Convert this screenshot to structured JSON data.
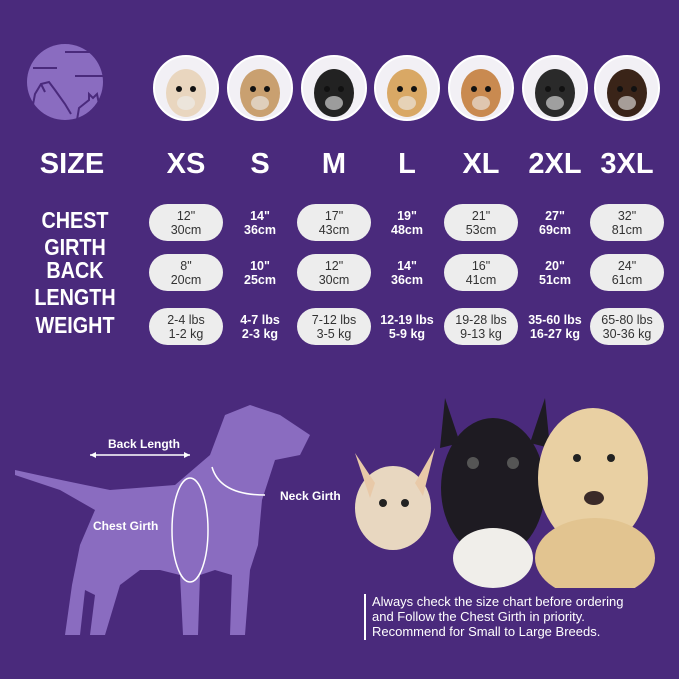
{
  "colors": {
    "background": "#4a2a7c",
    "pill": "#ededed",
    "silhouette": "#8a6cc0"
  },
  "logo": {
    "icon": "dog-cat-moon-logo-icon"
  },
  "size_label": "SIZE",
  "sizes": [
    "XS",
    "S",
    "M",
    "L",
    "XL",
    "2XL",
    "3XL"
  ],
  "rows": [
    {
      "label": "CHEST GIRTH",
      "values": [
        [
          "12\"",
          "30cm"
        ],
        [
          "14\"",
          "36cm"
        ],
        [
          "17\"",
          "43cm"
        ],
        [
          "19\"",
          "48cm"
        ],
        [
          "21\"",
          "53cm"
        ],
        [
          "27\"",
          "69cm"
        ],
        [
          "32\"",
          "81cm"
        ]
      ]
    },
    {
      "label": "BACK LENGTH",
      "values": [
        [
          "8\"",
          "20cm"
        ],
        [
          "10\"",
          "25cm"
        ],
        [
          "12\"",
          "30cm"
        ],
        [
          "14\"",
          "36cm"
        ],
        [
          "16\"",
          "41cm"
        ],
        [
          "20\"",
          "51cm"
        ],
        [
          "24\"",
          "61cm"
        ]
      ]
    },
    {
      "label": "WEIGHT",
      "values": [
        [
          "2-4 lbs",
          "1-2 kg"
        ],
        [
          "4-7 lbs",
          "2-3 kg"
        ],
        [
          "7-12 lbs",
          "3-5 kg"
        ],
        [
          "12-19 lbs",
          "5-9 kg"
        ],
        [
          "19-28 lbs",
          "9-13 kg"
        ],
        [
          "35-60 lbs",
          "16-27 kg"
        ],
        [
          "65-80 lbs",
          "30-36 kg"
        ]
      ]
    }
  ],
  "diagram": {
    "back_length": "Back Length",
    "neck_girth": "Neck Girth",
    "chest_girth": "Chest Girth"
  },
  "note": [
    "Always check the size chart before ordering",
    "and Follow the Chest Girth in priority.",
    "Recommend for Small to Large Breeds."
  ]
}
